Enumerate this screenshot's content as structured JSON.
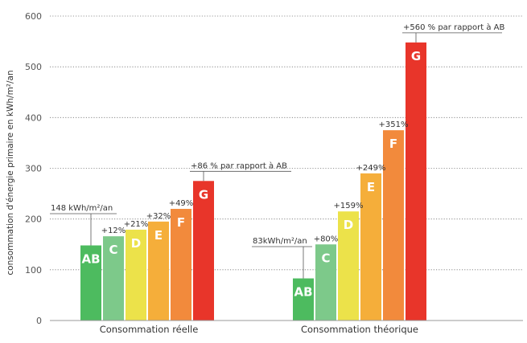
{
  "chart_data": {
    "type": "bar",
    "ylabel": "consommation d'énergie primaire en kWh/m²/an",
    "ylim": [
      0,
      600
    ],
    "yticks": [
      0,
      100,
      200,
      300,
      400,
      500,
      600
    ],
    "grid": true,
    "groups": [
      {
        "name": "Consommation réelle",
        "bars": [
          {
            "label": "AB",
            "value": 148,
            "pct": ""
          },
          {
            "label": "C",
            "value": 166,
            "pct": "+12%"
          },
          {
            "label": "D",
            "value": 179,
            "pct": "+21%"
          },
          {
            "label": "E",
            "value": 195,
            "pct": "+32%"
          },
          {
            "label": "F",
            "value": 220,
            "pct": "+49%"
          },
          {
            "label": "G",
            "value": 275,
            "pct": ""
          }
        ],
        "base_note": "148 kWh/m²/an",
        "top_note": "+86 % par rapport à AB"
      },
      {
        "name": "Consommation théorique",
        "bars": [
          {
            "label": "AB",
            "value": 83,
            "pct": ""
          },
          {
            "label": "C",
            "value": 150,
            "pct": "+80%"
          },
          {
            "label": "D",
            "value": 215,
            "pct": "+159%"
          },
          {
            "label": "E",
            "value": 290,
            "pct": "+249%"
          },
          {
            "label": "F",
            "value": 375,
            "pct": "+351%"
          },
          {
            "label": "G",
            "value": 548,
            "pct": ""
          }
        ],
        "base_note": "83kWh/m²/an",
        "top_note": "+560 % par rapport à AB"
      }
    ],
    "colors": [
      "#4dbb5f",
      "#7dc98a",
      "#ece24a",
      "#f5ae3a",
      "#f28a3c",
      "#e8352a"
    ]
  }
}
